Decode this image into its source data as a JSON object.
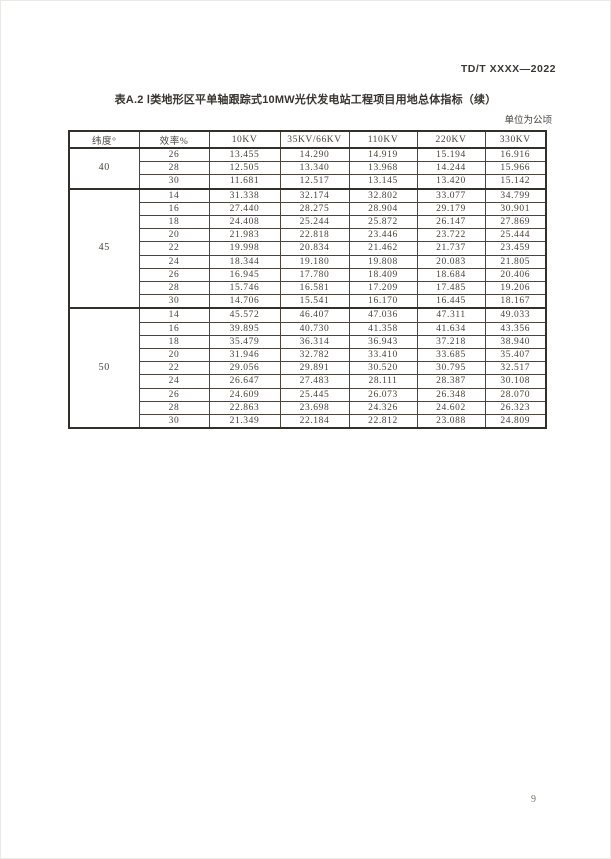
{
  "page": {
    "doc_code": "TD/T XXXX—2022",
    "page_number": "9"
  },
  "table": {
    "title": "表A.2 Ⅰ类地形区平单轴跟踪式10MW光伏发电站工程项目用地总体指标（续）",
    "unit_note": "单位为公顷",
    "columns": [
      "纬度°",
      "效率%",
      "10KV",
      "35KV/66KV",
      "110KV",
      "220KV",
      "330KV"
    ],
    "groups": [
      {
        "latitude": "40",
        "rows": [
          {
            "efficiency": "26",
            "values": [
              "13.455",
              "14.290",
              "14.919",
              "15.194",
              "16.916"
            ]
          },
          {
            "efficiency": "28",
            "values": [
              "12.505",
              "13.340",
              "13.968",
              "14.244",
              "15.966"
            ]
          },
          {
            "efficiency": "30",
            "values": [
              "11.681",
              "12.517",
              "13.145",
              "13.420",
              "15.142"
            ]
          }
        ]
      },
      {
        "latitude": "45",
        "rows": [
          {
            "efficiency": "14",
            "values": [
              "31.338",
              "32.174",
              "32.802",
              "33.077",
              "34.799"
            ]
          },
          {
            "efficiency": "16",
            "values": [
              "27.440",
              "28.275",
              "28.904",
              "29.179",
              "30.901"
            ]
          },
          {
            "efficiency": "18",
            "values": [
              "24.408",
              "25.244",
              "25.872",
              "26.147",
              "27.869"
            ]
          },
          {
            "efficiency": "20",
            "values": [
              "21.983",
              "22.818",
              "23.446",
              "23.722",
              "25.444"
            ]
          },
          {
            "efficiency": "22",
            "values": [
              "19.998",
              "20.834",
              "21.462",
              "21.737",
              "23.459"
            ]
          },
          {
            "efficiency": "24",
            "values": [
              "18.344",
              "19.180",
              "19.808",
              "20.083",
              "21.805"
            ]
          },
          {
            "efficiency": "26",
            "values": [
              "16.945",
              "17.780",
              "18.409",
              "18.684",
              "20.406"
            ]
          },
          {
            "efficiency": "28",
            "values": [
              "15.746",
              "16.581",
              "17.209",
              "17.485",
              "19.206"
            ]
          },
          {
            "efficiency": "30",
            "values": [
              "14.706",
              "15.541",
              "16.170",
              "16.445",
              "18.167"
            ]
          }
        ]
      },
      {
        "latitude": "50",
        "rows": [
          {
            "efficiency": "14",
            "values": [
              "45.572",
              "46.407",
              "47.036",
              "47.311",
              "49.033"
            ]
          },
          {
            "efficiency": "16",
            "values": [
              "39.895",
              "40.730",
              "41.358",
              "41.634",
              "43.356"
            ]
          },
          {
            "efficiency": "18",
            "values": [
              "35.479",
              "36.314",
              "36.943",
              "37.218",
              "38.940"
            ]
          },
          {
            "efficiency": "20",
            "values": [
              "31.946",
              "32.782",
              "33.410",
              "33.685",
              "35.407"
            ]
          },
          {
            "efficiency": "22",
            "values": [
              "29.056",
              "29.891",
              "30.520",
              "30.795",
              "32.517"
            ]
          },
          {
            "efficiency": "24",
            "values": [
              "26.647",
              "27.483",
              "28.111",
              "28.387",
              "30.108"
            ]
          },
          {
            "efficiency": "26",
            "values": [
              "24.609",
              "25.445",
              "26.073",
              "26.348",
              "28.070"
            ]
          },
          {
            "efficiency": "28",
            "values": [
              "22.863",
              "23.698",
              "24.326",
              "24.602",
              "26.323"
            ]
          },
          {
            "efficiency": "30",
            "values": [
              "21.349",
              "22.184",
              "22.812",
              "23.088",
              "24.809"
            ]
          }
        ]
      }
    ]
  }
}
